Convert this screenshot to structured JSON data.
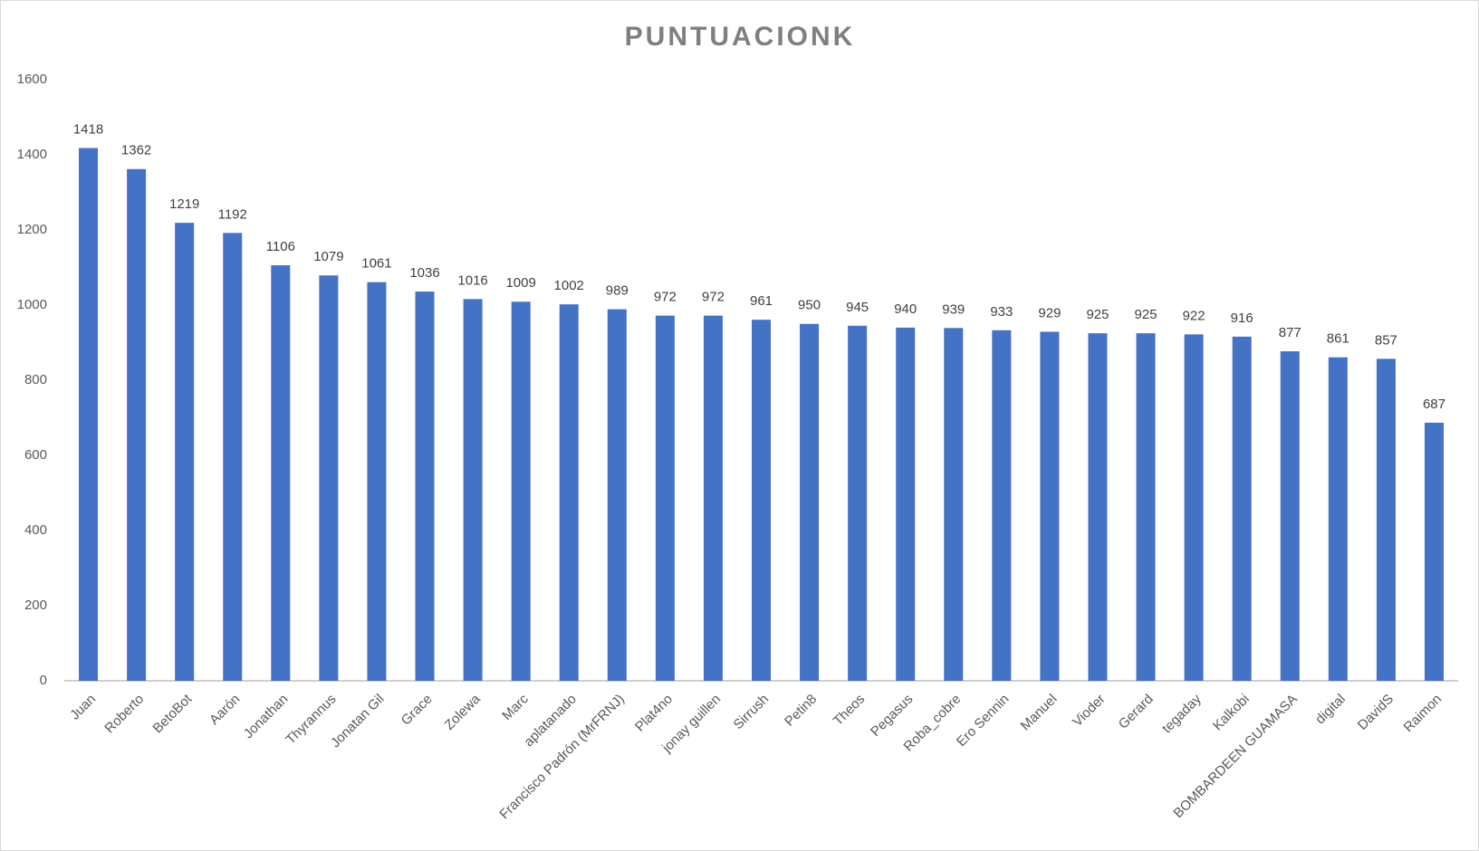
{
  "chart_data": {
    "type": "bar",
    "title": "PUNTUACIONK",
    "categories": [
      "Juan",
      "Roberto",
      "BetoBot",
      "Aarón",
      "Jonathan",
      "Thyrannus",
      "Jonatan Gil",
      "Grace",
      "Zolewa",
      "Marc",
      "aplatanado",
      "Francisco Padrón (MrFRNJ)",
      "Plat4no",
      "jonay guillen",
      "Sirrush",
      "Petin8",
      "Theos",
      "Pegasus",
      "Roba_cobre",
      "Ero Sennin",
      "Manuel",
      "Vioder",
      "Gerard",
      "tegaday",
      "Kalkobi",
      "BOMBARDEEN GUAMASA",
      "digital",
      "DavidS",
      "Raimon"
    ],
    "values": [
      1418,
      1362,
      1219,
      1192,
      1106,
      1079,
      1061,
      1036,
      1016,
      1009,
      1002,
      989,
      972,
      972,
      961,
      950,
      945,
      940,
      939,
      933,
      929,
      925,
      925,
      922,
      916,
      877,
      861,
      857,
      687
    ],
    "color": "#4472c4",
    "ylim": [
      0,
      1600
    ],
    "yticks": [
      0,
      200,
      400,
      600,
      800,
      1000,
      1200,
      1400,
      1600
    ],
    "grid": false
  }
}
